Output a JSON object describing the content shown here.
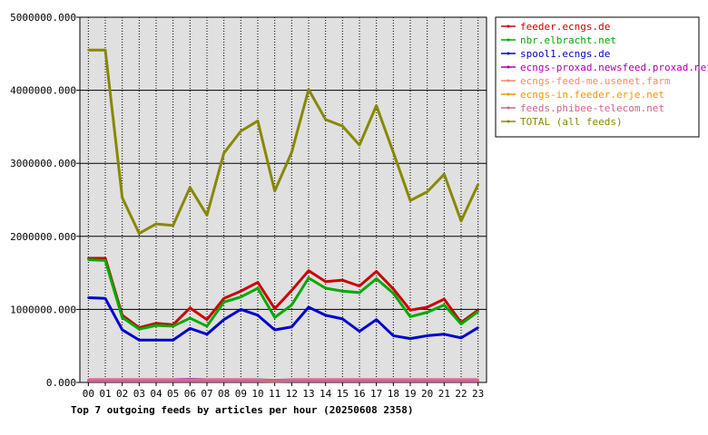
{
  "chart_data": {
    "type": "line",
    "title": "Top 7 outgoing feeds by articles per hour (20250608 2358)",
    "xlabel": "",
    "ylabel": "",
    "categories": [
      "00",
      "01",
      "02",
      "03",
      "04",
      "05",
      "06",
      "07",
      "08",
      "09",
      "10",
      "11",
      "12",
      "13",
      "14",
      "15",
      "16",
      "17",
      "18",
      "19",
      "20",
      "21",
      "22",
      "23"
    ],
    "y_tick_labels": [
      "0.000",
      "1000000.000",
      "2000000.000",
      "3000000.000",
      "4000000.000",
      "5000000.000"
    ],
    "ylim": [
      0,
      5000000
    ],
    "grid": true,
    "legend_position": "top-right",
    "series": [
      {
        "name": "feeder.ecngs.de",
        "color": "#cc0000",
        "values": [
          1700000,
          1700000,
          920000,
          750000,
          810000,
          790000,
          1020000,
          860000,
          1150000,
          1250000,
          1370000,
          1010000,
          1260000,
          1530000,
          1380000,
          1400000,
          1320000,
          1520000,
          1280000,
          990000,
          1030000,
          1140000,
          820000,
          990000
        ]
      },
      {
        "name": "nbr.elbracht.net",
        "color": "#00aa00",
        "values": [
          1680000,
          1670000,
          890000,
          730000,
          780000,
          770000,
          880000,
          770000,
          1100000,
          1170000,
          1290000,
          890000,
          1060000,
          1430000,
          1290000,
          1250000,
          1230000,
          1420000,
          1220000,
          900000,
          960000,
          1060000,
          800000,
          970000
        ]
      },
      {
        "name": "spool1.ecngs.de",
        "color": "#0000cc",
        "values": [
          1160000,
          1150000,
          720000,
          580000,
          580000,
          580000,
          740000,
          660000,
          860000,
          1000000,
          920000,
          720000,
          760000,
          1030000,
          920000,
          870000,
          700000,
          860000,
          640000,
          600000,
          640000,
          660000,
          610000,
          750000
        ]
      },
      {
        "name": "ecngs-proxad.newsfeed.proxad.net",
        "color": "#aa00aa",
        "values": [
          35000,
          35000,
          35000,
          35000,
          35000,
          35000,
          40000,
          35000,
          35000,
          35000,
          35000,
          30000,
          35000,
          35000,
          35000,
          35000,
          35000,
          35000,
          35000,
          35000,
          35000,
          35000,
          35000,
          35000
        ]
      },
      {
        "name": "ecngs-feed-me.usenet.farm",
        "color": "#ff8866",
        "values": [
          30000,
          30000,
          30000,
          30000,
          30000,
          30000,
          30000,
          30000,
          30000,
          30000,
          30000,
          25000,
          30000,
          30000,
          30000,
          30000,
          30000,
          30000,
          30000,
          30000,
          30000,
          30000,
          30000,
          30000
        ]
      },
      {
        "name": "ecngs-in.feeder.erje.net",
        "color": "#ee9900",
        "values": [
          25000,
          25000,
          25000,
          25000,
          25000,
          25000,
          25000,
          25000,
          25000,
          25000,
          25000,
          20000,
          25000,
          25000,
          25000,
          25000,
          25000,
          25000,
          25000,
          25000,
          25000,
          25000,
          25000,
          25000
        ]
      },
      {
        "name": "feeds.phibee-telecom.net",
        "color": "#cc6688",
        "values": [
          20000,
          20000,
          20000,
          20000,
          20000,
          20000,
          20000,
          20000,
          20000,
          20000,
          20000,
          15000,
          20000,
          20000,
          20000,
          20000,
          20000,
          20000,
          20000,
          20000,
          20000,
          20000,
          20000,
          20000
        ]
      },
      {
        "name": "TOTAL (all feeds)",
        "color": "#888800",
        "values": [
          4550000,
          4550000,
          2530000,
          2040000,
          2170000,
          2150000,
          2670000,
          2290000,
          3140000,
          3440000,
          3580000,
          2620000,
          3150000,
          4010000,
          3600000,
          3510000,
          3250000,
          3790000,
          3150000,
          2490000,
          2610000,
          2850000,
          2210000,
          2710000
        ]
      }
    ]
  }
}
